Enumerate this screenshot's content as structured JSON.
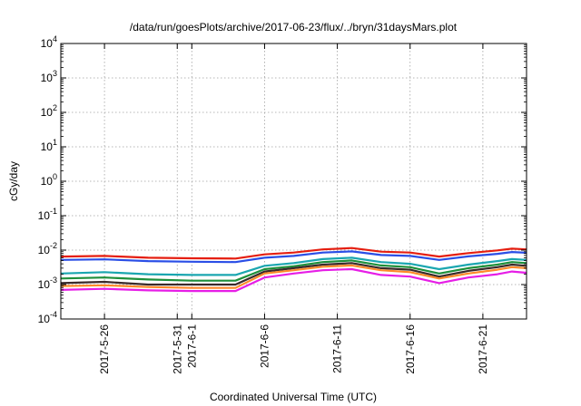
{
  "chart_data": {
    "type": "line",
    "title": "/data/run/goesPlots/archive/2017-06-23/flux/../bryn/31daysMars.plot",
    "xlabel": "Coordinated Universal Time (UTC)",
    "ylabel": "cGy/day",
    "y_scale": "log",
    "ylim": [
      0.0001,
      10000
    ],
    "y_ticks": [
      {
        "value": 0.0001,
        "mantissa": "10",
        "exp": "-4"
      },
      {
        "value": 0.001,
        "mantissa": "10",
        "exp": "-3"
      },
      {
        "value": 0.01,
        "mantissa": "10",
        "exp": "-2"
      },
      {
        "value": 0.1,
        "mantissa": "10",
        "exp": "-1"
      },
      {
        "value": 1,
        "mantissa": "10",
        "exp": "0"
      },
      {
        "value": 10,
        "mantissa": "10",
        "exp": "1"
      },
      {
        "value": 100,
        "mantissa": "10",
        "exp": "2"
      },
      {
        "value": 1000,
        "mantissa": "10",
        "exp": "3"
      },
      {
        "value": 10000,
        "mantissa": "10",
        "exp": "4"
      }
    ],
    "xlim": [
      "2017-05-23",
      "2017-06-24"
    ],
    "x_ticks": [
      "2017-5-26",
      "2017-5-31",
      "2017-6-1",
      "2017-6-6",
      "2017-6-11",
      "2017-6-16",
      "2017-6-21"
    ],
    "grid": true,
    "series": [
      {
        "color": "#e51e10",
        "x": [
          "2017-05-23",
          "2017-05-26",
          "2017-05-29",
          "2017-06-01",
          "2017-06-04",
          "2017-06-06",
          "2017-06-08",
          "2017-06-10",
          "2017-06-12",
          "2017-06-14",
          "2017-06-16",
          "2017-06-18",
          "2017-06-20",
          "2017-06-22",
          "2017-06-23",
          "2017-06-24"
        ],
        "values": [
          0.0065,
          0.0068,
          0.006,
          0.0058,
          0.0057,
          0.0075,
          0.0085,
          0.0105,
          0.0115,
          0.009,
          0.0085,
          0.0065,
          0.0082,
          0.0098,
          0.011,
          0.0105
        ]
      },
      {
        "color": "#2a4ee6",
        "x": [
          "2017-05-23",
          "2017-05-26",
          "2017-05-29",
          "2017-06-01",
          "2017-06-04",
          "2017-06-06",
          "2017-06-08",
          "2017-06-10",
          "2017-06-12",
          "2017-06-14",
          "2017-06-16",
          "2017-06-18",
          "2017-06-20",
          "2017-06-22",
          "2017-06-23",
          "2017-06-24"
        ],
        "values": [
          0.0052,
          0.0054,
          0.0048,
          0.0046,
          0.0045,
          0.006,
          0.0068,
          0.0085,
          0.0092,
          0.0072,
          0.0068,
          0.0052,
          0.0066,
          0.0078,
          0.0088,
          0.0084
        ]
      },
      {
        "color": "#1aa6b0",
        "x": [
          "2017-05-23",
          "2017-05-26",
          "2017-05-29",
          "2017-06-01",
          "2017-06-04",
          "2017-06-06",
          "2017-06-08",
          "2017-06-10",
          "2017-06-12",
          "2017-06-14",
          "2017-06-16",
          "2017-06-18",
          "2017-06-20",
          "2017-06-22",
          "2017-06-23",
          "2017-06-24"
        ],
        "values": [
          0.0021,
          0.0023,
          0.002,
          0.0019,
          0.0019,
          0.0035,
          0.0042,
          0.0055,
          0.006,
          0.0045,
          0.004,
          0.0028,
          0.0038,
          0.0048,
          0.0055,
          0.0052
        ]
      },
      {
        "color": "#1e8f3a",
        "x": [
          "2017-05-23",
          "2017-05-26",
          "2017-05-29",
          "2017-06-01",
          "2017-06-04",
          "2017-06-06",
          "2017-06-08",
          "2017-06-10",
          "2017-06-12",
          "2017-06-14",
          "2017-06-16",
          "2017-06-18",
          "2017-06-20",
          "2017-06-22",
          "2017-06-23",
          "2017-06-24"
        ],
        "values": [
          0.0015,
          0.0016,
          0.0014,
          0.0013,
          0.0013,
          0.0028,
          0.0034,
          0.0045,
          0.005,
          0.0036,
          0.0032,
          0.0021,
          0.003,
          0.0038,
          0.0045,
          0.0042
        ]
      },
      {
        "color": "#3a2a2a",
        "x": [
          "2017-05-23",
          "2017-05-26",
          "2017-05-29",
          "2017-06-01",
          "2017-06-04",
          "2017-06-06",
          "2017-06-08",
          "2017-06-10",
          "2017-06-12",
          "2017-06-14",
          "2017-06-16",
          "2017-06-18",
          "2017-06-20",
          "2017-06-22",
          "2017-06-23",
          "2017-06-24"
        ],
        "values": [
          0.0011,
          0.0012,
          0.001,
          0.001,
          0.001,
          0.0024,
          0.003,
          0.0038,
          0.0042,
          0.003,
          0.0027,
          0.0017,
          0.0025,
          0.0032,
          0.0038,
          0.0035
        ]
      },
      {
        "color": "#ff8a2a",
        "x": [
          "2017-05-23",
          "2017-05-26",
          "2017-05-29",
          "2017-06-01",
          "2017-06-04",
          "2017-06-06",
          "2017-06-08",
          "2017-06-10",
          "2017-06-12",
          "2017-06-14",
          "2017-06-16",
          "2017-06-18",
          "2017-06-20",
          "2017-06-22",
          "2017-06-23",
          "2017-06-24"
        ],
        "values": [
          0.0009,
          0.00095,
          0.00085,
          0.0008,
          0.0008,
          0.0021,
          0.0026,
          0.0033,
          0.0036,
          0.0026,
          0.0023,
          0.0015,
          0.0021,
          0.0027,
          0.0032,
          0.003
        ]
      },
      {
        "color": "#e61ee6",
        "x": [
          "2017-05-23",
          "2017-05-26",
          "2017-05-29",
          "2017-06-01",
          "2017-06-04",
          "2017-06-06",
          "2017-06-08",
          "2017-06-10",
          "2017-06-12",
          "2017-06-14",
          "2017-06-16",
          "2017-06-18",
          "2017-06-20",
          "2017-06-22",
          "2017-06-23",
          "2017-06-24"
        ],
        "values": [
          0.0007,
          0.00075,
          0.00068,
          0.00065,
          0.00065,
          0.0016,
          0.0021,
          0.0026,
          0.0028,
          0.0019,
          0.0017,
          0.0011,
          0.0016,
          0.002,
          0.0024,
          0.0022
        ]
      }
    ]
  }
}
